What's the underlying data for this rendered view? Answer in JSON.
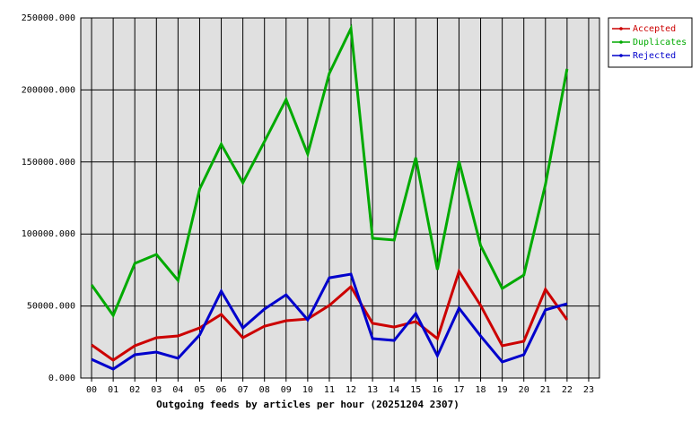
{
  "chart_data": {
    "type": "line",
    "x_label": "Outgoing feeds by articles per hour (20251204 2307)",
    "categories": [
      "00",
      "01",
      "02",
      "03",
      "04",
      "05",
      "06",
      "07",
      "08",
      "09",
      "10",
      "11",
      "12",
      "13",
      "14",
      "15",
      "16",
      "17",
      "18",
      "19",
      "20",
      "21",
      "22",
      "23"
    ],
    "series": [
      {
        "name": "Accepted",
        "color": "#cc0000",
        "values": [
          23000,
          12400,
          22400,
          28000,
          29200,
          34800,
          44200,
          28000,
          36000,
          39800,
          41000,
          50400,
          63400,
          38000,
          35400,
          39200,
          27400,
          74000,
          50400,
          22400,
          25500,
          61600,
          40400,
          null
        ]
      },
      {
        "name": "Duplicates",
        "color": "#00aa00",
        "values": [
          64700,
          43500,
          79600,
          85800,
          67800,
          131200,
          162300,
          135600,
          164200,
          193400,
          155500,
          211500,
          242600,
          97000,
          95800,
          153000,
          75300,
          150500,
          92000,
          62200,
          71500,
          134400,
          214600,
          null
        ]
      },
      {
        "name": "Rejected",
        "color": "#0000cc",
        "values": [
          13000,
          6200,
          16200,
          18000,
          13700,
          29900,
          60300,
          34800,
          47900,
          57800,
          40400,
          69600,
          72100,
          27400,
          26100,
          44800,
          15500,
          48500,
          29200,
          11200,
          16200,
          47300,
          51600,
          null
        ]
      }
    ],
    "ylim": [
      0,
      250000
    ],
    "yticks": [
      {
        "value": 0,
        "label": "0.000"
      },
      {
        "value": 50000,
        "label": "50000.000"
      },
      {
        "value": 100000,
        "label": "100000.000"
      },
      {
        "value": 150000,
        "label": "150000.000"
      },
      {
        "value": 200000,
        "label": "200000.000"
      },
      {
        "value": 250000,
        "label": "250000.000"
      }
    ],
    "grid": true,
    "legend": "top-right"
  }
}
